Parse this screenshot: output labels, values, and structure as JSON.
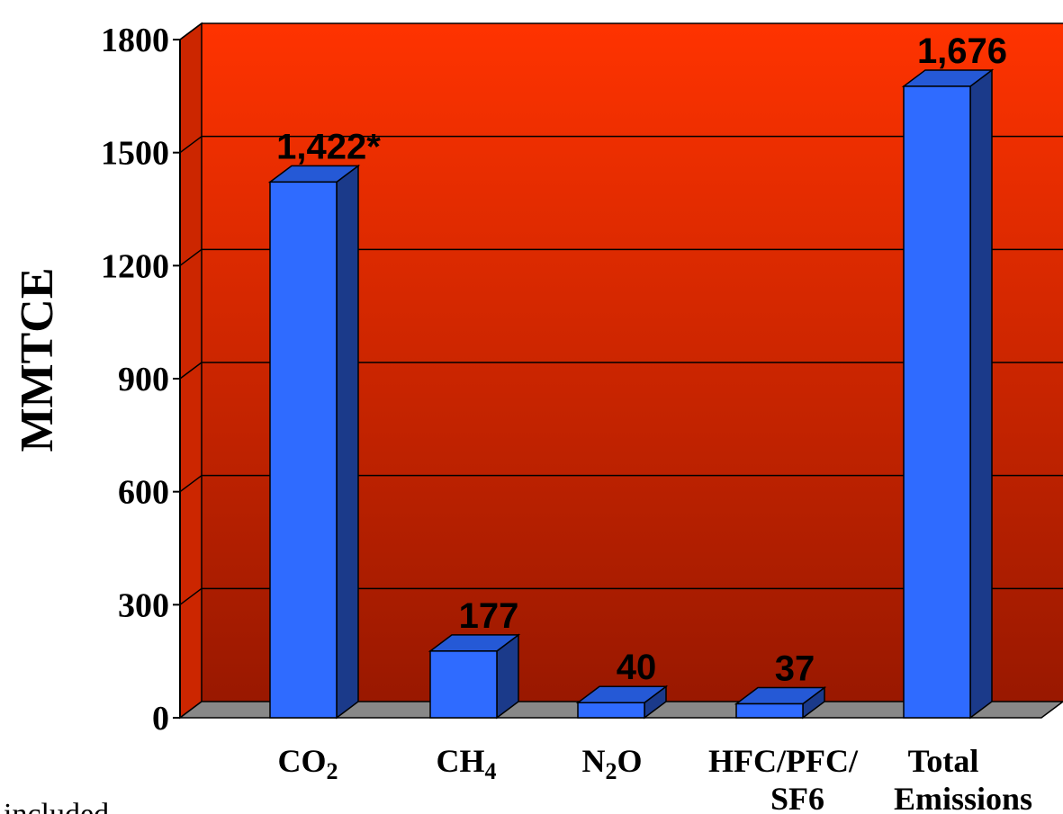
{
  "chart_data": {
    "type": "bar",
    "title": "",
    "xlabel": "",
    "ylabel": "MMTCE",
    "ylim": [
      0,
      1800
    ],
    "yticks": [
      "0",
      "300",
      "600",
      "900",
      "1200",
      "1500",
      "1800"
    ],
    "grid": true,
    "categories": [
      {
        "parts": [
          {
            "t": "CO"
          },
          {
            "t": "2",
            "sub": true
          }
        ]
      },
      {
        "parts": [
          {
            "t": "CH"
          },
          {
            "t": "4",
            "sub": true
          }
        ]
      },
      {
        "parts": [
          {
            "t": "N"
          },
          {
            "t": "2",
            "sub": true
          },
          {
            "t": "O"
          }
        ]
      },
      {
        "parts": [
          {
            "t": "HFC/PFC/"
          }
        ],
        "line2": "SF6"
      },
      {
        "parts": [
          {
            "t": "Total"
          }
        ],
        "line2": "Emissions"
      }
    ],
    "values": [
      1422,
      177,
      40,
      37,
      1676
    ],
    "data_labels": [
      "1,422*",
      "177",
      "40",
      "37",
      "1,676"
    ],
    "colors": {
      "bar_front": "#2f6bff",
      "bar_side": "#1b3a8a",
      "bar_top": "#2559d6",
      "background_top": "#ff3300",
      "background_bottom": "#991800",
      "floor": "#888888"
    }
  },
  "footnote": "included"
}
